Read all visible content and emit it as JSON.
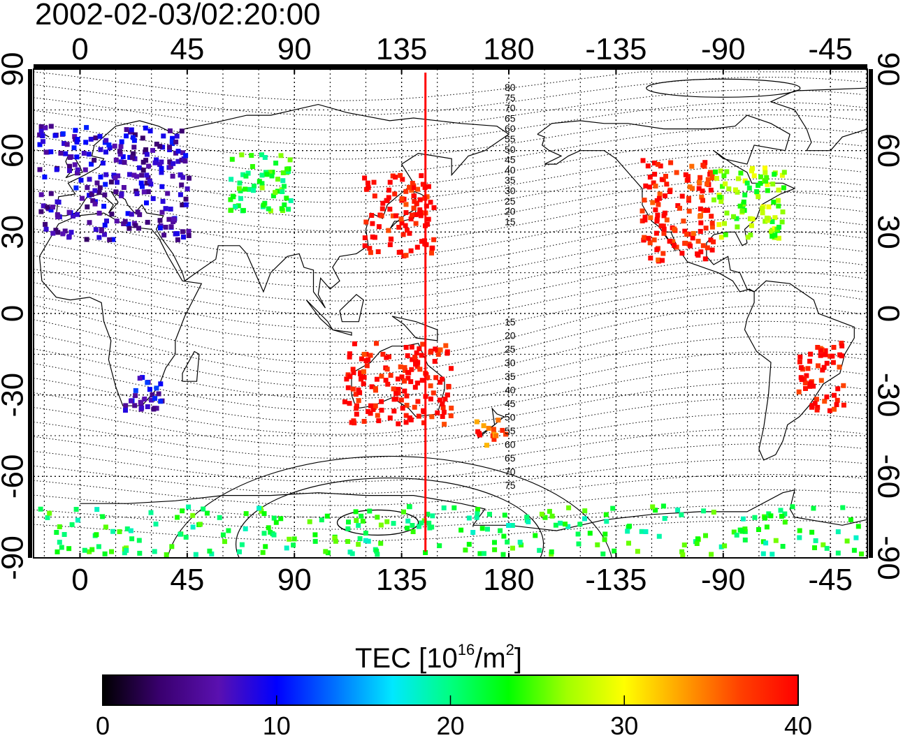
{
  "title": "2002-02-03/02:20:00",
  "top_longitude_labels": [
    "0",
    "45",
    "90",
    "135",
    "180",
    "-135",
    "-90",
    "-45"
  ],
  "bottom_longitude_labels": [
    "0",
    "45",
    "90",
    "135",
    "180",
    "-135",
    "-90",
    "-45"
  ],
  "latitude_labels": [
    "90",
    "60",
    "30",
    "0",
    "-30",
    "-60",
    "-90"
  ],
  "northern_contour_labels": [
    "80",
    "75",
    "70",
    "65",
    "60",
    "55",
    "50",
    "45",
    "40",
    "35",
    "30",
    "25",
    "20",
    "15"
  ],
  "southern_contour_labels": [
    "15",
    "20",
    "25",
    "30",
    "35",
    "40",
    "45",
    "50",
    "55",
    "60",
    "65",
    "70",
    "75"
  ],
  "colorbar": {
    "title_prefix": "TEC  [10",
    "title_exp1": "16",
    "title_mid": "/m",
    "title_exp2": "2",
    "title_suffix": "]",
    "tick_labels": [
      "0",
      "10",
      "20",
      "30",
      "40"
    ],
    "min": 0,
    "max": 40,
    "colors": [
      "#000000",
      "#3a0070",
      "#5a10b0",
      "#0000ff",
      "#0070ff",
      "#00e8ff",
      "#00ff80",
      "#00ff00",
      "#a0ff00",
      "#ffff00",
      "#ffa000",
      "#ff4000",
      "#ff0000"
    ]
  },
  "terminator_longitude": 145,
  "tec_regions": [
    {
      "region": "europe",
      "lon": [
        -18,
        45
      ],
      "lat": [
        28,
        70
      ],
      "tec": 7
    },
    {
      "region": "central-asia",
      "lon": [
        62,
        88
      ],
      "lat": [
        38,
        60
      ],
      "tec": 23
    },
    {
      "region": "east-asia",
      "lon": [
        118,
        148
      ],
      "lat": [
        22,
        52
      ],
      "tec": 40
    },
    {
      "region": "north-america-west",
      "lon": [
        -125,
        -95
      ],
      "lat": [
        20,
        58
      ],
      "tec": 39
    },
    {
      "region": "north-america-east",
      "lon": [
        -95,
        -65
      ],
      "lat": [
        28,
        55
      ],
      "tec": 26
    },
    {
      "region": "southern-africa",
      "lon": [
        15,
        35
      ],
      "lat": [
        -35,
        -22
      ],
      "tec": 8
    },
    {
      "region": "australia",
      "lon": [
        110,
        155
      ],
      "lat": [
        -40,
        -10
      ],
      "tec": 40
    },
    {
      "region": "new-zealand",
      "lon": [
        165,
        180
      ],
      "lat": [
        -48,
        -38
      ],
      "tec": 36
    },
    {
      "region": "south-america",
      "lon": [
        -60,
        -40
      ],
      "lat": [
        -35,
        -10
      ],
      "tec": 40
    },
    {
      "region": "antarctica",
      "lon": [
        -20,
        330
      ],
      "lat": [
        -88,
        -70
      ],
      "tec": 22
    }
  ]
}
